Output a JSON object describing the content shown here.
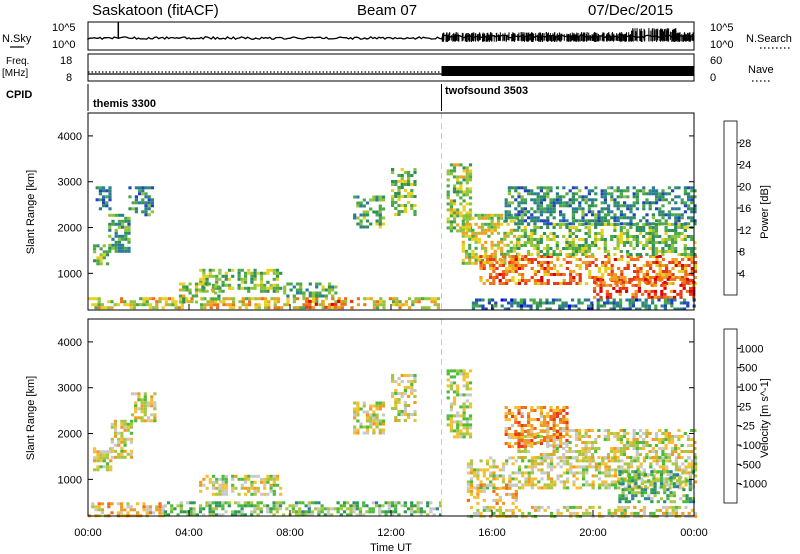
{
  "header": {
    "radar": "Saskatoon (fitACF)",
    "beam": "Beam 07",
    "date": "07/Dec/2015"
  },
  "top_panels": {
    "nsky_label": "N.Sky",
    "nsky_ticks": [
      "10^5",
      "10^0"
    ],
    "nsearch_label": "N.Search",
    "nsearch_ticks": [
      "10^5",
      "10^0"
    ],
    "freq_label": "Freq.",
    "freq_unit": "[MHz]",
    "freq_ticks": [
      "18",
      "8"
    ],
    "nave_label": "Nave",
    "nave_ticks": [
      "60",
      "0"
    ],
    "cpid_label": "CPID",
    "cpid_segments": [
      {
        "name": "themis 3300",
        "start_hour": 0,
        "end_hour": 14.0
      },
      {
        "name": "twofsound 3503",
        "start_hour": 14.0,
        "end_hour": 24
      }
    ]
  },
  "chart_data": [
    {
      "type": "heatmap",
      "panel": "power",
      "ylabel": "Slant Range [km]",
      "xlabel": "",
      "xlim": [
        0,
        24
      ],
      "ylim": [
        200,
        4500
      ],
      "yticks": [
        "1000",
        "2000",
        "3000",
        "4000"
      ],
      "colorbar": {
        "label": "Power [dB]",
        "ticks": [
          "4",
          "8",
          "12",
          "16",
          "20",
          "24",
          "28"
        ],
        "colors": [
          "#0000ee",
          "#2244bb",
          "#2a7a9a",
          "#2f8f5a",
          "#4aa84a",
          "#8fc43a",
          "#e8d020",
          "#f0a020",
          "#f07018",
          "#e83818",
          "#dd0000"
        ]
      },
      "regions": [
        {
          "x0": 0.2,
          "x1": 0.8,
          "y0": 1200,
          "y1": 1700,
          "level": 0.45
        },
        {
          "x0": 0.8,
          "x1": 1.6,
          "y0": 1500,
          "y1": 2300,
          "level": 0.35
        },
        {
          "x0": 1.6,
          "x1": 2.6,
          "y0": 2300,
          "y1": 2900,
          "level": 0.3
        },
        {
          "x0": 0.3,
          "x1": 0.9,
          "y0": 2400,
          "y1": 2900,
          "level": 0.25
        },
        {
          "x0": 0.0,
          "x1": 13.9,
          "y0": 220,
          "y1": 480,
          "level": 0.6
        },
        {
          "x0": 4.4,
          "x1": 7.6,
          "y0": 600,
          "y1": 1100,
          "level": 0.45
        },
        {
          "x0": 3.6,
          "x1": 5.2,
          "y0": 350,
          "y1": 800,
          "level": 0.5
        },
        {
          "x0": 7.6,
          "x1": 9.8,
          "y0": 500,
          "y1": 800,
          "level": 0.4
        },
        {
          "x0": 8.6,
          "x1": 10.4,
          "y0": 230,
          "y1": 420,
          "level": 0.8
        },
        {
          "x0": 10.5,
          "x1": 11.7,
          "y0": 2000,
          "y1": 2700,
          "level": 0.4
        },
        {
          "x0": 12.0,
          "x1": 12.9,
          "y0": 2300,
          "y1": 3300,
          "level": 0.45
        },
        {
          "x0": 14.2,
          "x1": 15.2,
          "y0": 1900,
          "y1": 3400,
          "level": 0.5
        },
        {
          "x0": 14.8,
          "x1": 17.0,
          "y0": 1200,
          "y1": 2300,
          "level": 0.55
        },
        {
          "x0": 15.5,
          "x1": 24.0,
          "y0": 800,
          "y1": 1400,
          "level": 0.75
        },
        {
          "x0": 17.0,
          "x1": 24.0,
          "y0": 1400,
          "y1": 2100,
          "level": 0.45
        },
        {
          "x0": 20.0,
          "x1": 24.0,
          "y0": 450,
          "y1": 900,
          "level": 0.85
        },
        {
          "x0": 16.5,
          "x1": 24.0,
          "y0": 2100,
          "y1": 2900,
          "level": 0.3
        },
        {
          "x0": 15.2,
          "x1": 24.0,
          "y0": 220,
          "y1": 450,
          "level": 0.25
        }
      ]
    },
    {
      "type": "heatmap",
      "panel": "velocity",
      "ylabel": "Slant Range [km]",
      "xlabel": "Time UT",
      "xlim": [
        0,
        24
      ],
      "ylim": [
        200,
        4500
      ],
      "xticks": [
        "00:00",
        "04:00",
        "08:00",
        "12:00",
        "16:00",
        "20:00",
        "00:00"
      ],
      "yticks": [
        "1000",
        "2000",
        "3000",
        "4000"
      ],
      "colorbar": {
        "label": "Velocity [m s^-1]",
        "ticks": [
          "1000",
          "500",
          "100",
          "25",
          "-25",
          "-100",
          "-500",
          "-1000"
        ],
        "colors": [
          "#2b4fb0",
          "#2e7f9c",
          "#2f9a55",
          "#4dbb3a",
          "#a8c640",
          "#c8c8c8",
          "#f4c030",
          "#f09a20",
          "#f06a18",
          "#ee3818",
          "#e00000"
        ]
      },
      "regions": [
        {
          "x0": 0.2,
          "x1": 0.9,
          "y0": 1200,
          "y1": 1700,
          "level": 0.5
        },
        {
          "x0": 0.9,
          "x1": 1.7,
          "y0": 1500,
          "y1": 2300,
          "level": 0.5
        },
        {
          "x0": 1.7,
          "x1": 2.6,
          "y0": 2300,
          "y1": 2900,
          "level": 0.5
        },
        {
          "x0": 0.0,
          "x1": 3.0,
          "y0": 220,
          "y1": 500,
          "level": 0.6
        },
        {
          "x0": 3.0,
          "x1": 13.9,
          "y0": 220,
          "y1": 520,
          "level": 0.35
        },
        {
          "x0": 4.4,
          "x1": 7.6,
          "y0": 700,
          "y1": 1100,
          "level": 0.5
        },
        {
          "x0": 10.5,
          "x1": 11.7,
          "y0": 2000,
          "y1": 2700,
          "level": 0.5
        },
        {
          "x0": 12.0,
          "x1": 12.9,
          "y0": 2300,
          "y1": 3300,
          "level": 0.5
        },
        {
          "x0": 14.2,
          "x1": 15.2,
          "y0": 1900,
          "y1": 3400,
          "level": 0.45
        },
        {
          "x0": 15.0,
          "x1": 24.0,
          "y0": 800,
          "y1": 1500,
          "level": 0.5
        },
        {
          "x0": 17.0,
          "x1": 24.0,
          "y0": 1500,
          "y1": 2100,
          "level": 0.5
        },
        {
          "x0": 21.0,
          "x1": 24.0,
          "y0": 500,
          "y1": 1200,
          "level": 0.3
        },
        {
          "x0": 16.5,
          "x1": 19.0,
          "y0": 1700,
          "y1": 2600,
          "level": 0.7
        },
        {
          "x0": 15.0,
          "x1": 17.0,
          "y0": 500,
          "y1": 900,
          "level": 0.65
        },
        {
          "x0": 15.0,
          "x1": 24.0,
          "y0": 220,
          "y1": 420,
          "level": 0.5
        }
      ]
    }
  ]
}
